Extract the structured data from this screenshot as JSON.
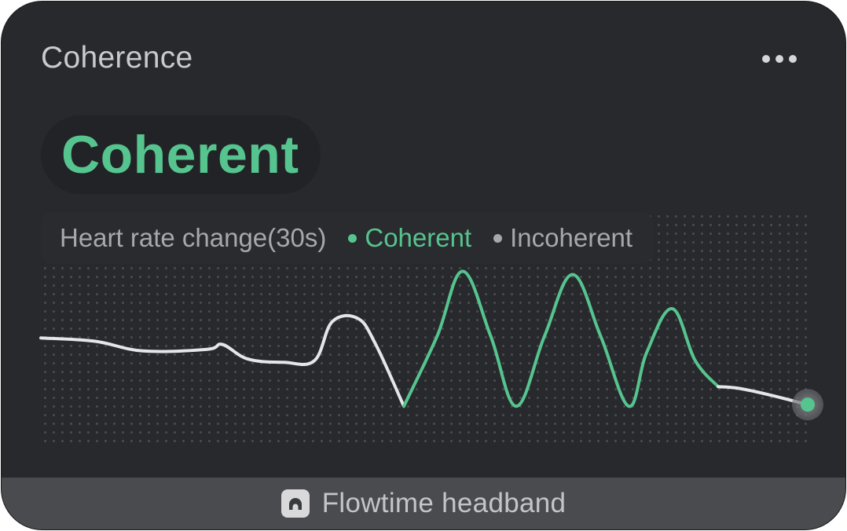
{
  "card": {
    "title": "Coherence",
    "more_icon": "more-horizontal-icon"
  },
  "status": {
    "label": "Coherent",
    "color": "#56c48e"
  },
  "legend": {
    "title": "Heart rate change(30s)",
    "items": [
      {
        "label": "Coherent",
        "color": "#56c48e"
      },
      {
        "label": "Incoherent",
        "color": "#a7a8ab"
      }
    ]
  },
  "footer": {
    "device_icon": "headband-icon",
    "device_label": "Flowtime headband"
  },
  "colors": {
    "background": "#28292d",
    "coherent": "#56c48e",
    "incoherent": "#e6e6e8",
    "footer": "#4a4b4f"
  },
  "chart_data": {
    "type": "line",
    "title": "Heart rate change(30s)",
    "xlabel": "",
    "ylabel": "",
    "x_range": [
      0,
      30
    ],
    "y_range": [
      0,
      100
    ],
    "grid": "dotted background",
    "legend": "top-left",
    "series": [
      {
        "name": "Incoherent",
        "points": [
          [
            0,
            54
          ],
          [
            2.1,
            52
          ],
          [
            4.0,
            46
          ],
          [
            6.5,
            47
          ],
          [
            7.1,
            50
          ],
          [
            8.1,
            41
          ],
          [
            9.5,
            39
          ],
          [
            10.7,
            40
          ],
          [
            11.4,
            64
          ],
          [
            12.4,
            66
          ],
          [
            13.1,
            50
          ],
          [
            14.2,
            12
          ]
        ]
      },
      {
        "name": "Coherent",
        "points": [
          [
            14.2,
            12
          ],
          [
            15.5,
            55
          ],
          [
            16.5,
            95
          ],
          [
            17.6,
            55
          ],
          [
            18.6,
            12
          ],
          [
            19.7,
            55
          ],
          [
            20.8,
            93
          ],
          [
            21.9,
            55
          ],
          [
            23.0,
            12
          ],
          [
            23.7,
            45
          ],
          [
            24.7,
            72
          ],
          [
            25.6,
            40
          ],
          [
            26.5,
            24
          ]
        ]
      },
      {
        "name": "Incoherent",
        "points": [
          [
            26.5,
            24
          ],
          [
            27.3,
            23
          ],
          [
            28.5,
            19
          ],
          [
            30,
            13
          ]
        ]
      }
    ]
  }
}
